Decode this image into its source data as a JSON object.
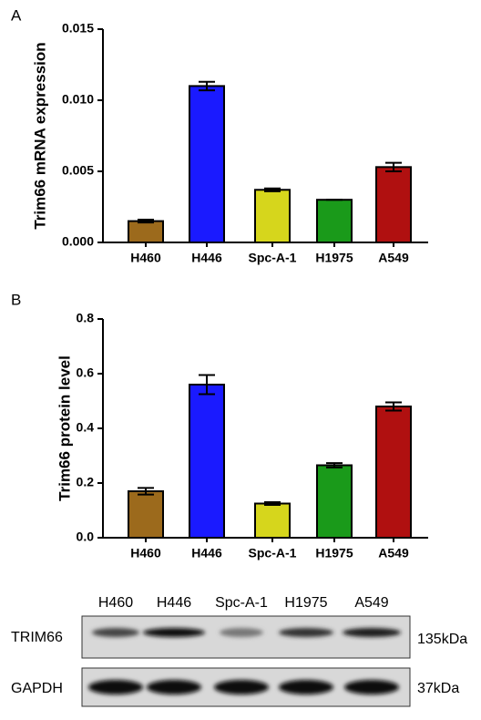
{
  "chart_data": [
    {
      "type": "bar",
      "label": "A",
      "ylabel": "Trim66 mRNA expression",
      "categories": [
        "H460",
        "H446",
        "Spc-A-1",
        "H1975",
        "A549"
      ],
      "values": [
        0.0015,
        0.011,
        0.0037,
        0.003,
        0.0053
      ],
      "errors": [
        0.0001,
        0.0003,
        0.0001,
        0,
        0.0003
      ],
      "colors": [
        "#9c6a1c",
        "#1a1aff",
        "#d6d61c",
        "#1a9a1a",
        "#b01010"
      ],
      "ylim": [
        0,
        0.015
      ],
      "yticks": [
        {
          "value": 0,
          "label": "0.000"
        },
        {
          "value": 0.005,
          "label": "0.005"
        },
        {
          "value": 0.01,
          "label": "0.010"
        },
        {
          "value": 0.015,
          "label": "0.015"
        }
      ]
    },
    {
      "type": "bar",
      "label": "B",
      "ylabel": "Trim66 protein level",
      "categories": [
        "H460",
        "H446",
        "Spc-A-1",
        "H1975",
        "A549"
      ],
      "values": [
        0.17,
        0.56,
        0.125,
        0.265,
        0.48
      ],
      "errors": [
        0.012,
        0.035,
        0.005,
        0.008,
        0.015
      ],
      "colors": [
        "#9c6a1c",
        "#1a1aff",
        "#d6d61c",
        "#1a9a1a",
        "#b01010"
      ],
      "ylim": [
        0,
        0.8
      ],
      "yticks": [
        {
          "value": 0,
          "label": "0.0"
        },
        {
          "value": 0.2,
          "label": "0.2"
        },
        {
          "value": 0.4,
          "label": "0.4"
        },
        {
          "value": 0.6,
          "label": "0.6"
        },
        {
          "value": 0.8,
          "label": "0.8"
        }
      ]
    }
  ],
  "blot": {
    "lanes": [
      "H460",
      "H446",
      "Spc-A-1",
      "H1975",
      "A549"
    ],
    "rows": [
      {
        "name": "TRIM66",
        "size": "135kDa"
      },
      {
        "name": "GAPDH",
        "size": "37kDa"
      }
    ]
  }
}
